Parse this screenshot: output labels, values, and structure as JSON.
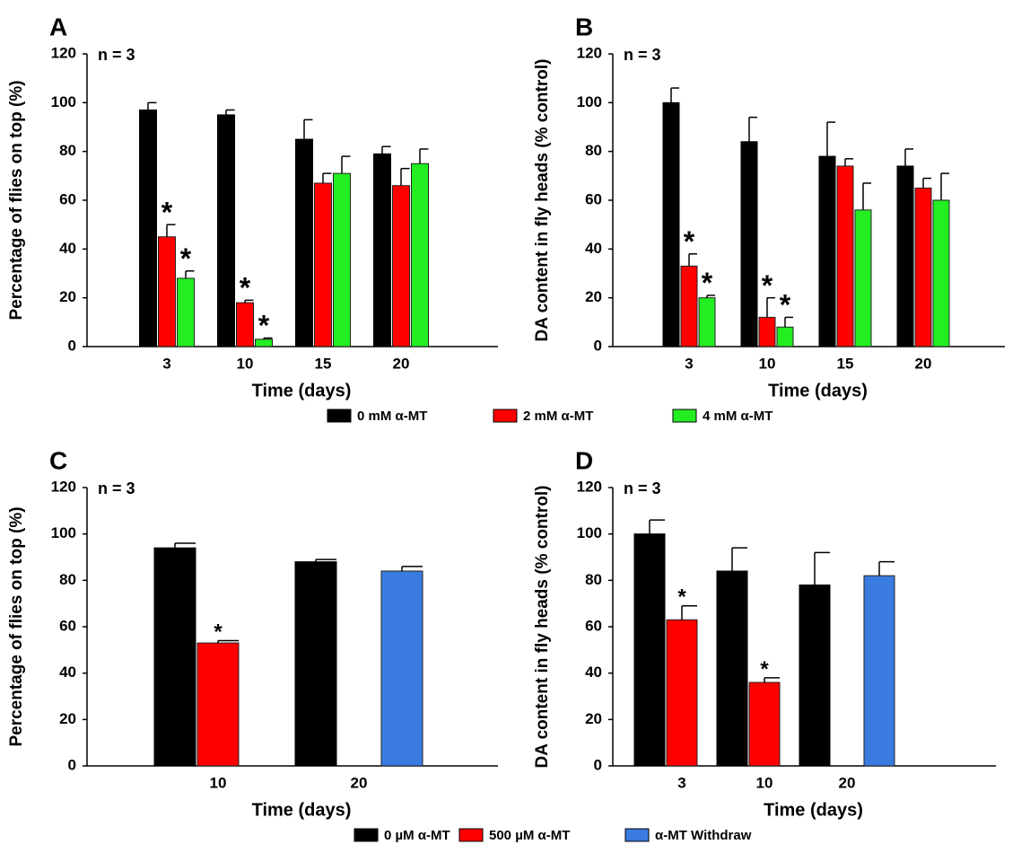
{
  "chart_data": [
    {
      "type": "bar",
      "panel": "A",
      "note": "n = 3",
      "ylabel": "Percentage of flies on top (%)",
      "xlabel": "Time (days)",
      "categories": [
        "3",
        "10",
        "15",
        "20"
      ],
      "ylim": [
        0,
        120
      ],
      "yticks": [
        0,
        20,
        40,
        60,
        80,
        100,
        120
      ],
      "legend": true,
      "series": [
        {
          "name": "0 mM α-MT",
          "color": "#000000",
          "values": [
            97,
            95,
            85,
            79
          ],
          "errors": [
            3,
            2,
            8,
            3
          ]
        },
        {
          "name": "2 mM α-MT",
          "color": "#ff0000",
          "values": [
            45,
            18,
            67,
            66
          ],
          "errors": [
            5,
            1,
            4,
            7
          ]
        },
        {
          "name": "4 mM α-MT",
          "color": "#22ee22",
          "values": [
            28,
            3,
            71,
            75
          ],
          "errors": [
            3,
            0.5,
            7,
            6
          ]
        }
      ],
      "annotations": [
        {
          "text": "*",
          "series": "2 mM α-MT",
          "category": "3"
        },
        {
          "text": "*",
          "series": "4 mM α-MT",
          "category": "3"
        },
        {
          "text": "*",
          "series": "2 mM α-MT",
          "category": "10"
        },
        {
          "text": "*",
          "series": "4 mM α-MT",
          "category": "10"
        }
      ]
    },
    {
      "type": "bar",
      "panel": "B",
      "note": "n = 3",
      "ylabel": "DA content in fly heads (% control)",
      "xlabel": "Time (days)",
      "categories": [
        "3",
        "10",
        "15",
        "20"
      ],
      "ylim": [
        0,
        120
      ],
      "yticks": [
        0,
        20,
        40,
        60,
        80,
        100,
        120
      ],
      "legend": false,
      "series": [
        {
          "name": "0 mM α-MT",
          "color": "#000000",
          "values": [
            100,
            84,
            78,
            74
          ],
          "errors": [
            6,
            10,
            14,
            7
          ]
        },
        {
          "name": "2 mM α-MT",
          "color": "#ff0000",
          "values": [
            33,
            12,
            74,
            65
          ],
          "errors": [
            5,
            8,
            3,
            4
          ]
        },
        {
          "name": "4 mM α-MT",
          "color": "#22ee22",
          "values": [
            20,
            8,
            56,
            60
          ],
          "errors": [
            1,
            4,
            11,
            11
          ]
        }
      ],
      "annotations": [
        {
          "text": "*",
          "series": "2 mM α-MT",
          "category": "3"
        },
        {
          "text": "*",
          "series": "4 mM α-MT",
          "category": "3"
        },
        {
          "text": "*",
          "series": "2 mM α-MT",
          "category": "10"
        },
        {
          "text": "*",
          "series": "4 mM α-MT",
          "category": "10"
        }
      ]
    },
    {
      "type": "bar",
      "panel": "C",
      "note": "n = 3",
      "ylabel": "Percentage of flies on top (%)",
      "xlabel": "Time (days)",
      "categories": [
        "10",
        "20"
      ],
      "ylim": [
        0,
        120
      ],
      "yticks": [
        0,
        20,
        40,
        60,
        80,
        100,
        120
      ],
      "legend": true,
      "series": [
        {
          "name": "0 µM α-MT",
          "color": "#000000",
          "values": [
            94,
            88
          ],
          "errors": [
            2,
            1
          ]
        },
        {
          "name": "500 µM α-MT",
          "color": "#ff0000",
          "values": [
            53,
            null
          ],
          "errors": [
            1,
            null
          ]
        },
        {
          "name": "α-MT Withdraw",
          "color": "#3a7be0",
          "values": [
            null,
            84
          ],
          "errors": [
            null,
            2
          ]
        }
      ],
      "annotations": [
        {
          "text": "*",
          "series": "500 µM α-MT",
          "category": "10"
        }
      ]
    },
    {
      "type": "bar",
      "panel": "D",
      "note": "n = 3",
      "ylabel": "DA content in fly heads (% control)",
      "xlabel": "Time (days)",
      "categories": [
        "3",
        "10",
        "20"
      ],
      "ylim": [
        0,
        120
      ],
      "yticks": [
        0,
        20,
        40,
        60,
        80,
        100,
        120
      ],
      "legend": false,
      "series": [
        {
          "name": "0 µM α-MT",
          "color": "#000000",
          "values": [
            100,
            84,
            78
          ],
          "errors": [
            6,
            10,
            14
          ]
        },
        {
          "name": "500 µM α-MT",
          "color": "#ff0000",
          "values": [
            63,
            36,
            null
          ],
          "errors": [
            6,
            2,
            null
          ]
        },
        {
          "name": "α-MT Withdraw",
          "color": "#3a7be0",
          "values": [
            null,
            null,
            82
          ],
          "errors": [
            null,
            null,
            6
          ]
        }
      ],
      "annotations": [
        {
          "text": "*",
          "series": "500 µM α-MT",
          "category": "3"
        },
        {
          "text": "*",
          "series": "500 µM α-MT",
          "category": "10"
        }
      ]
    }
  ]
}
